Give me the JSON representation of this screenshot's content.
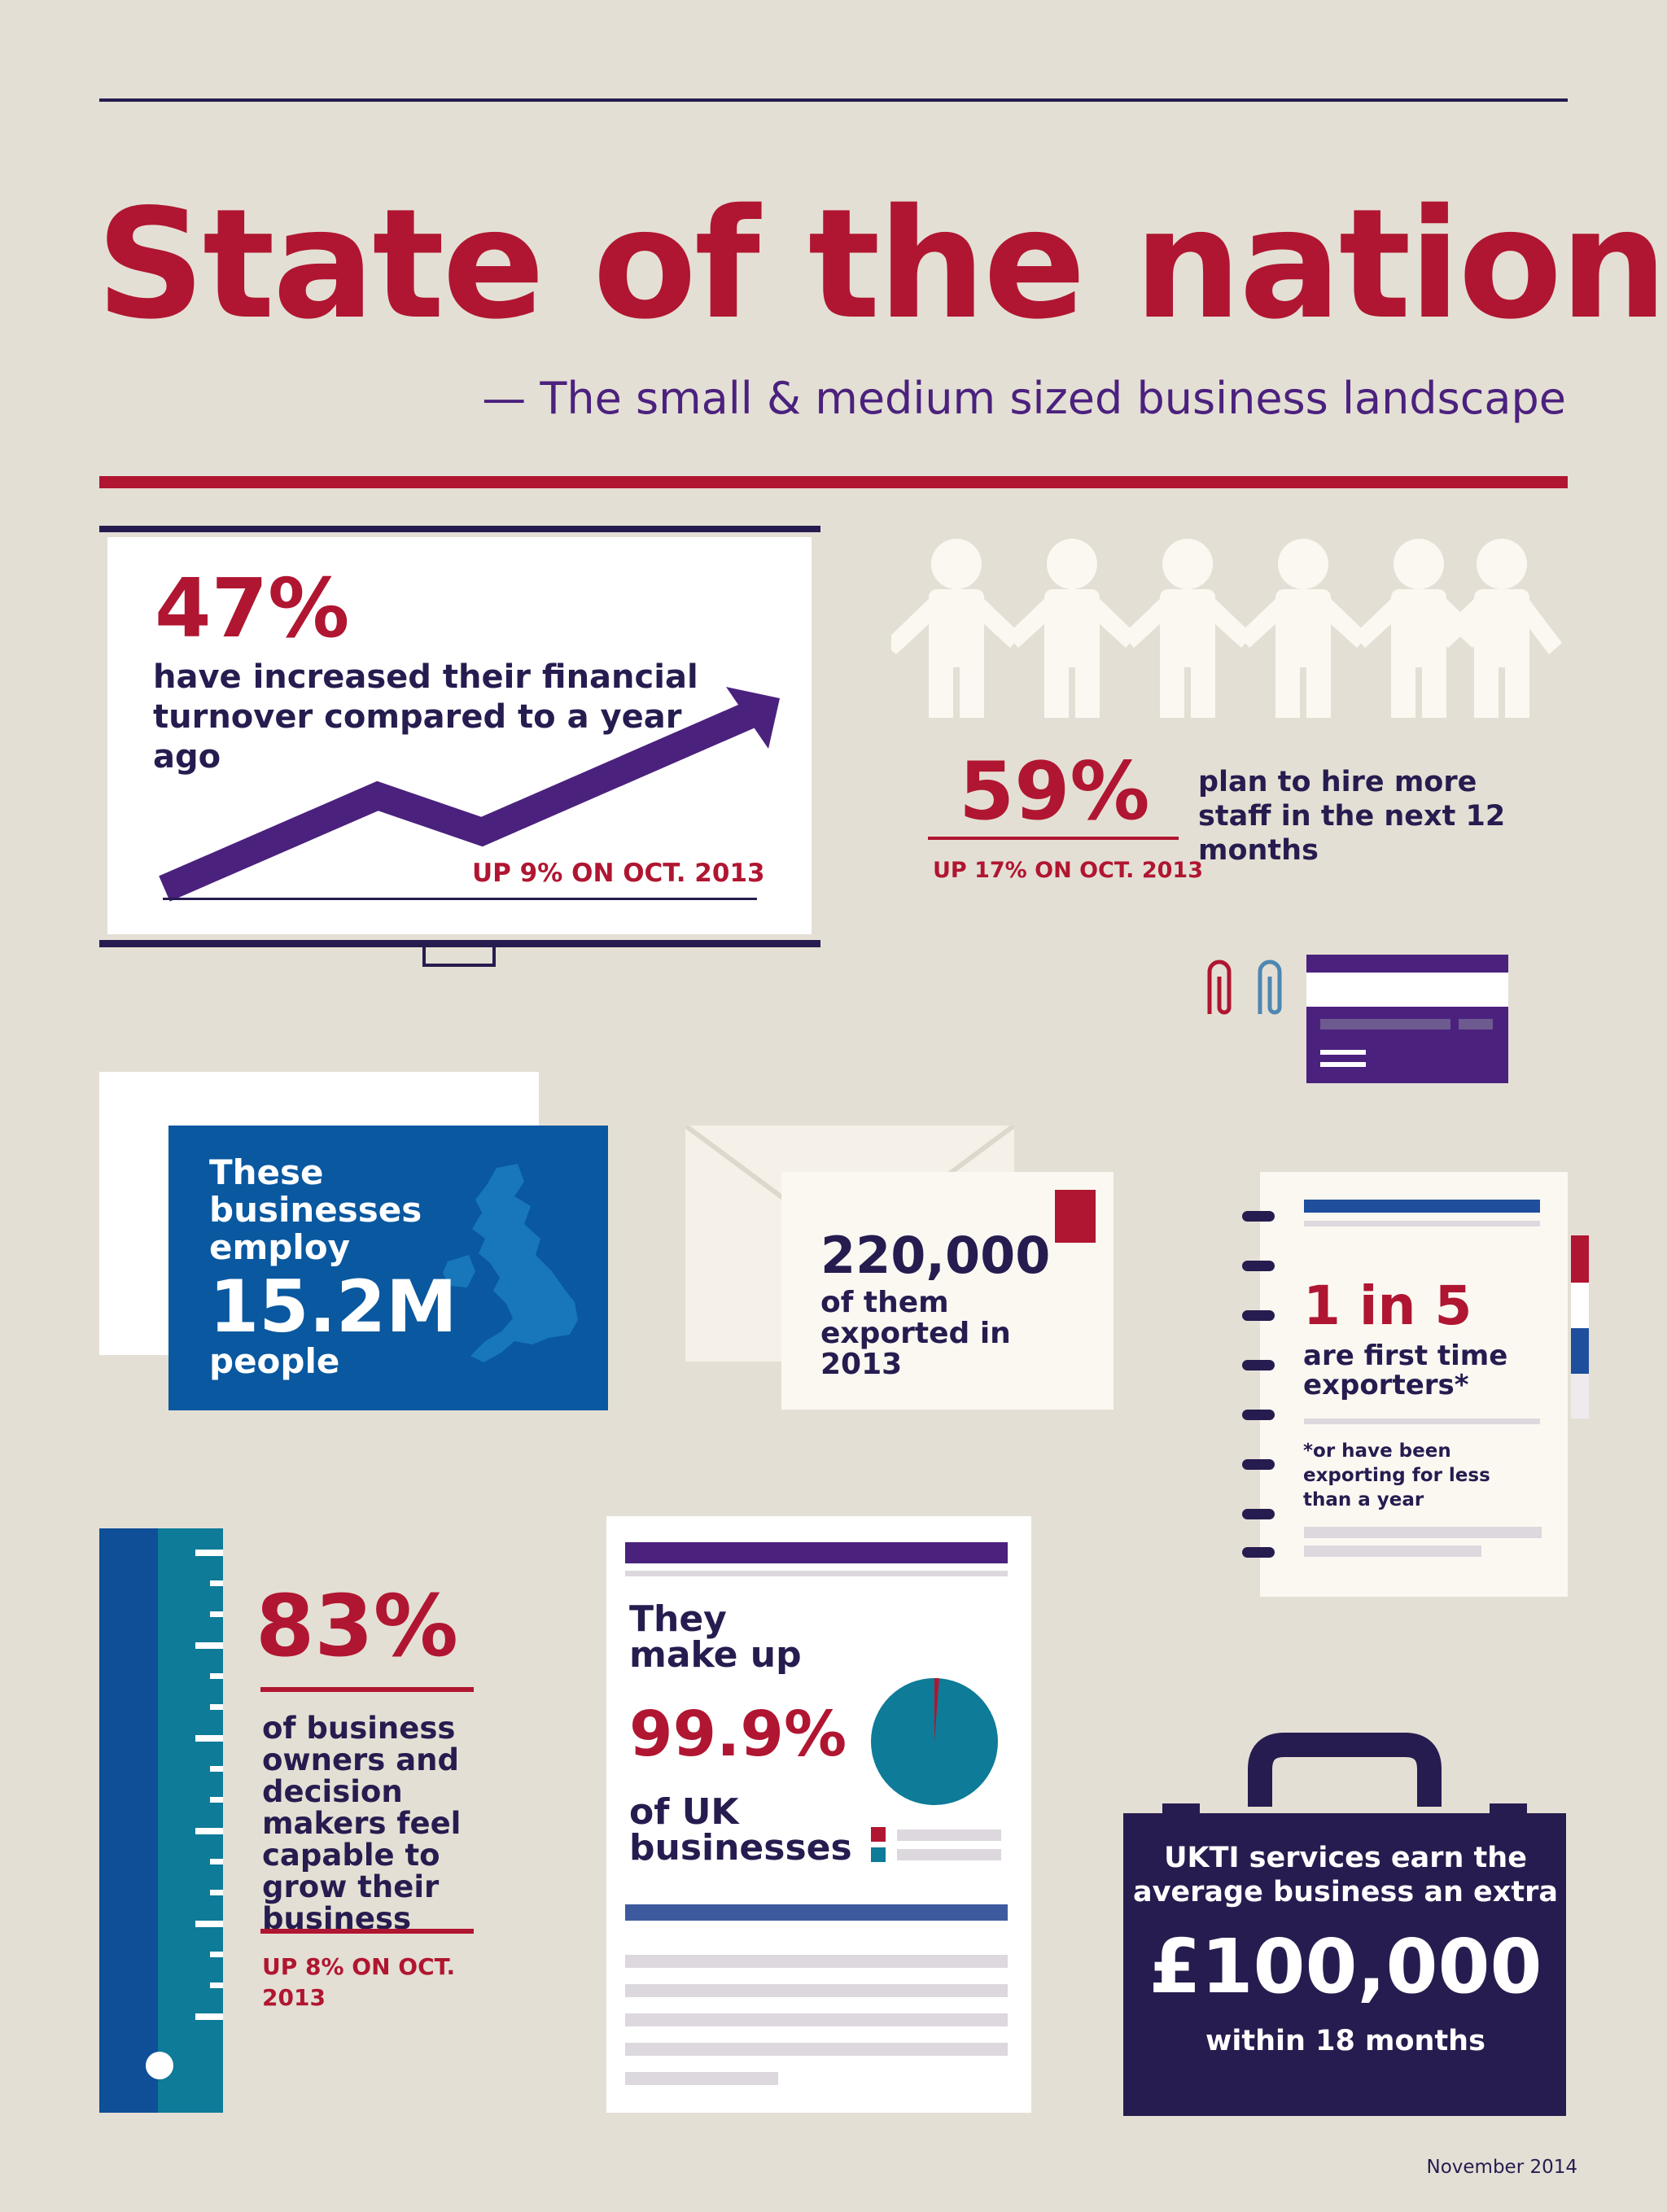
{
  "header": {
    "title": "State of the nation",
    "subtitle": "— The small & medium sized business landscape"
  },
  "turnover": {
    "stat": "47%",
    "text": "have increased their financial turnover compared to a year ago",
    "change": "UP 9% ON OCT. 2013"
  },
  "hiring": {
    "stat": "59%",
    "text": "plan to hire more staff in the next 12 months",
    "change": "UP 17% ON OCT. 2013"
  },
  "employment": {
    "text_before": "These businesses employ",
    "stat": "15.2M",
    "text_after": "people"
  },
  "exports": {
    "stat": "220,000",
    "text": "of them exported in 2013"
  },
  "first_time": {
    "stat": "1 in 5",
    "text": "are first time exporters*",
    "note": "*or have been exporting for less than a year"
  },
  "capability": {
    "stat": "83%",
    "text": "of business owners and decision makers feel capable to grow their business",
    "change": "UP 8% ON OCT. 2013"
  },
  "share": {
    "text_before": "They make up",
    "stat": "99.9%",
    "text_after": "of UK businesses",
    "pie_value_percent": 99.9
  },
  "ukti": {
    "text_before": "UKTI services earn the average business an extra",
    "stat": "£100,000",
    "text_after": "within 18 months"
  },
  "footer": {
    "date": "November 2014"
  },
  "colors": {
    "background": "#e4dfd4",
    "red": "#b01631",
    "navy": "#271c4f",
    "purple": "#4b217e",
    "blue": "#0958a0",
    "teal": "#0e7b98"
  }
}
